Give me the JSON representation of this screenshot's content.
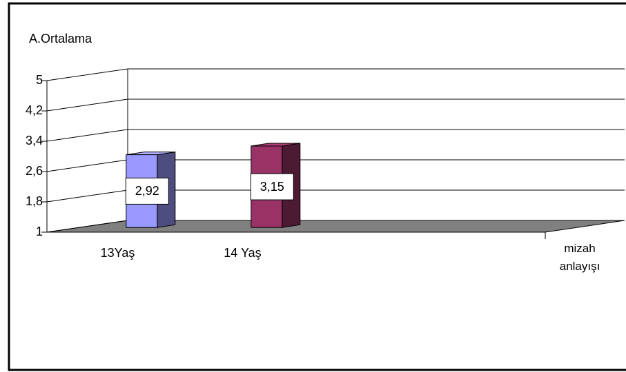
{
  "chart_data": {
    "type": "bar3d",
    "y_label": "A.Ortalama",
    "x_label": "mizah anlayışı",
    "categories": [
      "13Yaş",
      "14 Yaş"
    ],
    "values": [
      2.92,
      3.15
    ],
    "value_labels": [
      "2,92",
      "3,15"
    ],
    "colors": [
      "#9999ff",
      "#993366"
    ],
    "ylim": [
      1,
      5
    ],
    "yticks": [
      1,
      {
        "value": 1.8,
        "label": "1,8"
      },
      {
        "value": 2.6,
        "label": "2,6"
      },
      {
        "value": 3.4,
        "label": "3,4"
      },
      {
        "value": 4.2,
        "label": "4,2"
      },
      5
    ],
    "grid": true
  }
}
